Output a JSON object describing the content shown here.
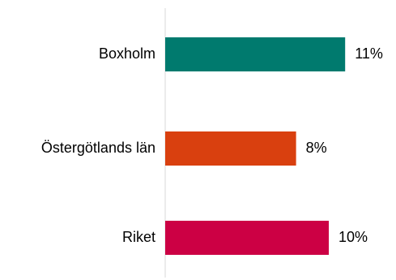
{
  "chart_data": {
    "type": "bar",
    "orientation": "horizontal",
    "categories": [
      "Boxholm",
      "Östergötlands län",
      "Riket"
    ],
    "values": [
      11,
      8,
      10
    ],
    "value_labels": [
      "11%",
      "8%",
      "10%"
    ],
    "colors": [
      "#007a6e",
      "#d9400f",
      "#cc0044"
    ],
    "axis_color": "#d9d9d9",
    "xlim": [
      0,
      12
    ],
    "grid": false,
    "legend": "none"
  }
}
